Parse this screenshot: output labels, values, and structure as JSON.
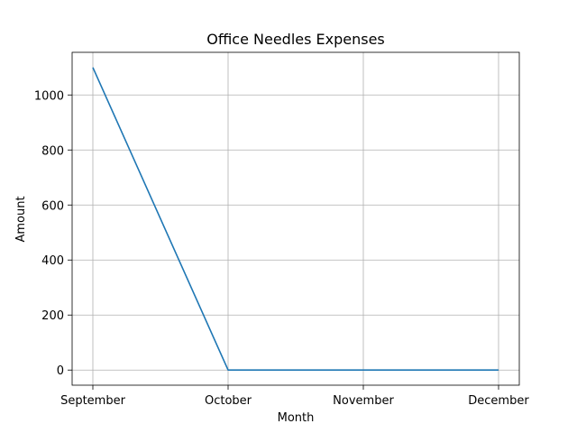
{
  "chart_data": {
    "type": "line",
    "title": "Office Needles Expenses",
    "xlabel": "Month",
    "ylabel": "Amount",
    "categories": [
      "September",
      "October",
      "November",
      "December"
    ],
    "series": [
      {
        "values": [
          1100,
          0,
          0,
          0
        ],
        "color": "#1f77b4"
      }
    ],
    "ylim": [
      -55,
      1155
    ],
    "yticks": [
      0,
      200,
      400,
      600,
      800,
      1000
    ],
    "grid": true
  }
}
